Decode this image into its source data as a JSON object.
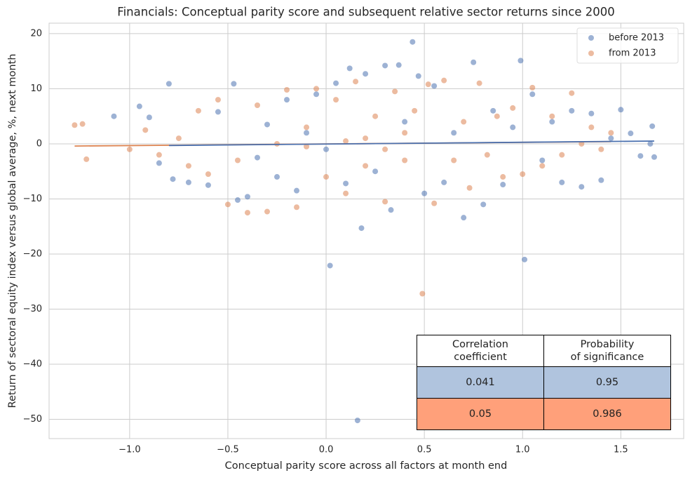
{
  "chart_data": {
    "type": "scatter",
    "title": "Financials: Conceptual parity score and subsequent relative sector returns since 2000",
    "x_label": "Conceptual parity score across all factors at month end",
    "y_label": "Return of sectoral equity index versus global average, %, next month",
    "xlim": [
      -1.41,
      1.82
    ],
    "ylim": [
      -53.5,
      21.9
    ],
    "xticks": [
      {
        "value": -1,
        "label": "−1.0"
      },
      {
        "value": -0.5,
        "label": "−0.5"
      },
      {
        "value": 0,
        "label": "0.0"
      },
      0.5,
      {
        "value": 1,
        "label": "1.0"
      },
      1.5
    ],
    "yticks": [
      20,
      10,
      0,
      {
        "value": -10,
        "label": "−10"
      },
      {
        "value": -20,
        "label": "−20"
      },
      {
        "value": -30,
        "label": "−30"
      },
      {
        "value": -40,
        "label": "−40"
      },
      {
        "value": -50,
        "label": "−50"
      }
    ],
    "grid": true,
    "legend": "upper right",
    "series": [
      {
        "name": "before 2013",
        "color": "#4c72b0",
        "x": [
          -1.08,
          -0.95,
          -0.9,
          -0.8,
          -0.85,
          -0.78,
          -0.7,
          -0.6,
          -0.55,
          -0.47,
          -0.45,
          -0.4,
          -0.35,
          -0.3,
          -0.25,
          -0.2,
          -0.15,
          -0.1,
          -0.05,
          0,
          0.02,
          0.05,
          0.1,
          0.12,
          0.16,
          0.18,
          0.2,
          0.25,
          0.3,
          0.33,
          0.37,
          0.4,
          0.44,
          0.47,
          0.5,
          0.55,
          0.6,
          0.65,
          0.7,
          0.75,
          0.8,
          0.85,
          0.9,
          0.95,
          0.99,
          1.01,
          1.05,
          1.1,
          1.15,
          1.2,
          1.25,
          1.3,
          1.35,
          1.4,
          1.45,
          1.5,
          1.55,
          1.6,
          1.66,
          1.67,
          1.65
        ],
        "values": [
          5,
          6.8,
          4.8,
          10.9,
          -3.5,
          -6.4,
          -7,
          -7.5,
          5.8,
          10.9,
          -10.2,
          -9.6,
          -2.5,
          3.5,
          -6,
          8,
          -8.5,
          2,
          9,
          -1,
          -22.1,
          11,
          -7.2,
          13.7,
          -50.2,
          -15.3,
          12.7,
          -5,
          14.2,
          -12,
          14.3,
          4,
          18.5,
          12.3,
          -9,
          10.5,
          -7,
          2,
          -13.4,
          14.8,
          -11,
          6,
          -7.4,
          3,
          15.1,
          -21,
          9,
          -3,
          4,
          -7,
          6,
          -7.8,
          5.5,
          -6.6,
          1,
          6.2,
          1.9,
          -2.2,
          3.2,
          -2.4,
          0
        ],
        "fit_x": [
          -0.8,
          1.67
        ],
        "fit_values": [
          -0.3,
          0.5
        ]
      },
      {
        "name": "from 2013",
        "color": "#dd8452",
        "x": [
          -1.28,
          -1.24,
          -1.22,
          -1,
          -0.92,
          -0.85,
          -0.75,
          -0.7,
          -0.65,
          -0.6,
          -0.55,
          -0.5,
          -0.45,
          -0.4,
          -0.35,
          -0.3,
          -0.25,
          -0.2,
          -0.15,
          -0.1,
          -0.05,
          0,
          0.05,
          0.1,
          0.15,
          0.2,
          0.25,
          0.3,
          0.35,
          0.4,
          0.45,
          0.49,
          0.52,
          0.55,
          0.6,
          0.65,
          0.7,
          0.73,
          0.78,
          0.82,
          0.87,
          0.9,
          0.95,
          1,
          1.05,
          1.1,
          1.15,
          1.2,
          1.25,
          1.3,
          1.35,
          1.4,
          1.45,
          0.2,
          0.3,
          0.1,
          -0.1,
          0.4
        ],
        "values": [
          3.4,
          3.6,
          -2.8,
          -1,
          2.5,
          -2,
          1,
          -4,
          6,
          -5.5,
          8,
          -11,
          -3,
          -12.5,
          7,
          -12.3,
          0,
          9.8,
          -11.5,
          3,
          10,
          -6,
          8,
          -9,
          11.3,
          -4,
          5,
          -10.5,
          9.5,
          -3,
          6,
          -27.2,
          10.8,
          -10.8,
          11.5,
          -3,
          4,
          -8,
          11,
          -2,
          5,
          -6,
          6.5,
          -5.5,
          10.2,
          -4,
          5,
          -2,
          9.2,
          0,
          3,
          -1,
          2,
          1,
          -1,
          0.5,
          -0.5,
          2
        ],
        "fit_x": [
          -1.28,
          1.45
        ],
        "fit_values": [
          -0.4,
          0.4
        ]
      }
    ],
    "table": {
      "header": [
        "Correlation\ncoefficient",
        "Probability\nof significance"
      ],
      "rows": [
        [
          "0.041",
          "0.95"
        ],
        [
          "0.05",
          "0.986"
        ]
      ],
      "row_colors": [
        "#b0c4de",
        "#ffa07a"
      ]
    }
  }
}
